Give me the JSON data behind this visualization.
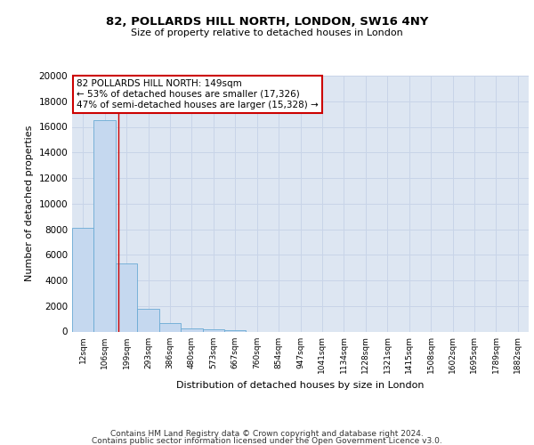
{
  "title": "82, POLLARDS HILL NORTH, LONDON, SW16 4NY",
  "subtitle": "Size of property relative to detached houses in London",
  "xlabel": "Distribution of detached houses by size in London",
  "ylabel": "Number of detached properties",
  "categories": [
    "12sqm",
    "106sqm",
    "199sqm",
    "293sqm",
    "386sqm",
    "480sqm",
    "573sqm",
    "667sqm",
    "760sqm",
    "854sqm",
    "947sqm",
    "1041sqm",
    "1134sqm",
    "1228sqm",
    "1321sqm",
    "1415sqm",
    "1508sqm",
    "1602sqm",
    "1695sqm",
    "1789sqm",
    "1882sqm"
  ],
  "values": [
    8100,
    16500,
    5300,
    1750,
    680,
    270,
    160,
    100,
    0,
    0,
    0,
    0,
    0,
    0,
    0,
    0,
    0,
    0,
    0,
    0,
    0
  ],
  "bar_color": "#c5d8ef",
  "bar_edge_color": "#6aaad4",
  "vline_x": 1.62,
  "vline_color": "#cc0000",
  "annotation_line1": "82 POLLARDS HILL NORTH: 149sqm",
  "annotation_line2": "← 53% of detached houses are smaller (17,326)",
  "annotation_line3": "47% of semi-detached houses are larger (15,328) →",
  "annotation_box_color": "#ffffff",
  "annotation_box_edge_color": "#cc0000",
  "ylim": [
    0,
    20000
  ],
  "yticks": [
    0,
    2000,
    4000,
    6000,
    8000,
    10000,
    12000,
    14000,
    16000,
    18000,
    20000
  ],
  "grid_color": "#c8d4e8",
  "background_color": "#dde6f2",
  "footer_line1": "Contains HM Land Registry data © Crown copyright and database right 2024.",
  "footer_line2": "Contains public sector information licensed under the Open Government Licence v3.0."
}
